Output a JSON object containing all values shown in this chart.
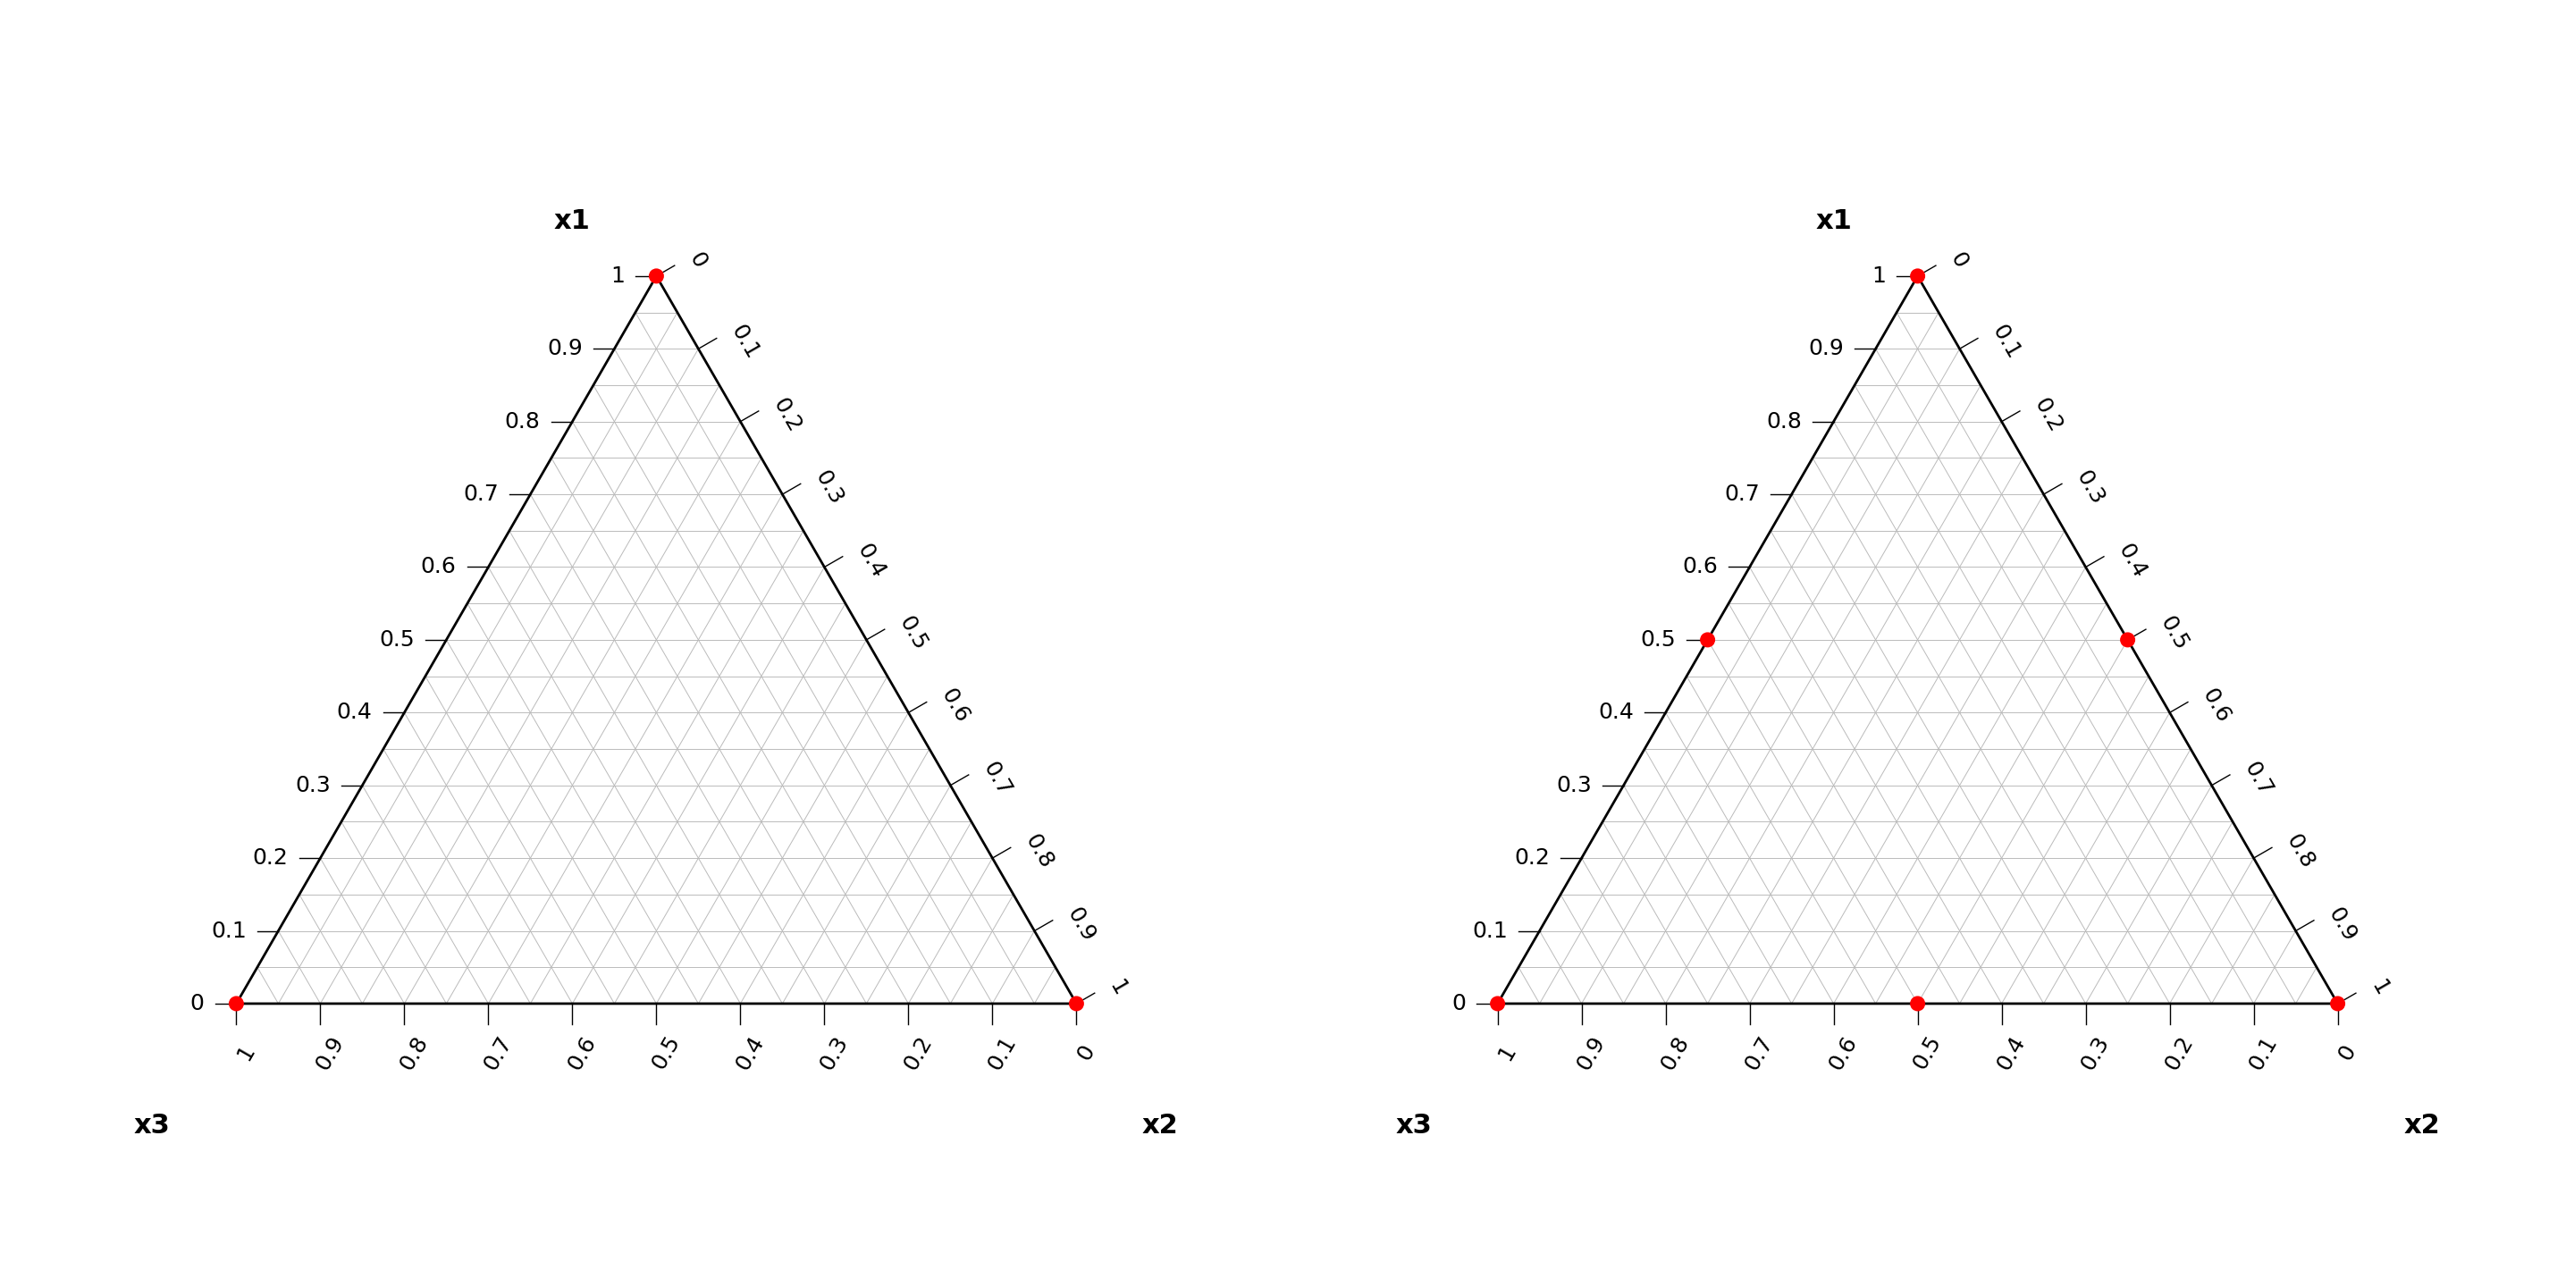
{
  "background_color": "#ffffff",
  "grid_divisions": 20,
  "grid_color": "#bbbbbb",
  "grid_linewidth": 0.7,
  "border_color": "#000000",
  "border_linewidth": 2.0,
  "tick_label_fontsize": 18,
  "axis_label_fontsize": 22,
  "axis_label_fontweight": "bold",
  "dot_color": "#ff0000",
  "dot_size": 150,
  "dot_zorder": 5,
  "panel1_points": [
    [
      1.0,
      0.0,
      0.0
    ],
    [
      0.0,
      1.0,
      0.0
    ],
    [
      0.0,
      0.0,
      1.0
    ]
  ],
  "panel2_points": [
    [
      1.0,
      0.0,
      0.0
    ],
    [
      0.0,
      1.0,
      0.0
    ],
    [
      0.0,
      0.0,
      1.0
    ],
    [
      0.5,
      0.5,
      0.0
    ],
    [
      0.5,
      0.0,
      0.5
    ],
    [
      0.0,
      0.5,
      0.5
    ]
  ],
  "tick_values": [
    0.0,
    0.1,
    0.2,
    0.3,
    0.4,
    0.5,
    0.6,
    0.7,
    0.8,
    0.9,
    1.0
  ],
  "x1_label": "x1",
  "x2_label": "x2",
  "x3_label": "x3"
}
